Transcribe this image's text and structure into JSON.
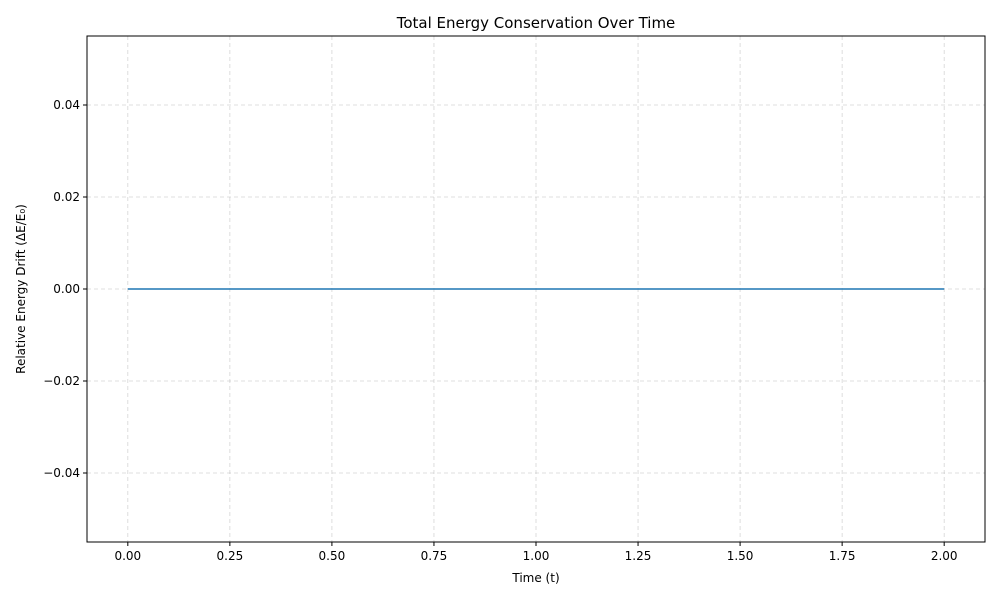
{
  "chart_data": {
    "type": "line",
    "title": "Total Energy Conservation Over Time",
    "xlabel": "Time (t)",
    "ylabel": "Relative Energy Drift (ΔE/E₀)",
    "xlim": [
      -0.1,
      2.1
    ],
    "ylim": [
      -0.055,
      0.055
    ],
    "grid": true,
    "x_ticks": [
      0.0,
      0.25,
      0.5,
      0.75,
      1.0,
      1.25,
      1.5,
      1.75,
      2.0
    ],
    "x_tick_labels": [
      "0.00",
      "0.25",
      "0.50",
      "0.75",
      "1.00",
      "1.25",
      "1.50",
      "1.75",
      "2.00"
    ],
    "y_ticks": [
      -0.04,
      -0.02,
      0.0,
      0.02,
      0.04
    ],
    "y_tick_labels": [
      "−0.04",
      "−0.02",
      "0.00",
      "0.02",
      "0.04"
    ],
    "series": [
      {
        "color": "#1f77b4",
        "x": [
          0.0,
          0.25,
          0.5,
          0.75,
          1.0,
          1.25,
          1.5,
          1.75,
          2.0
        ],
        "y": [
          0.0,
          0.0,
          0.0,
          0.0,
          0.0,
          0.0,
          0.0,
          0.0,
          0.0
        ]
      }
    ]
  }
}
